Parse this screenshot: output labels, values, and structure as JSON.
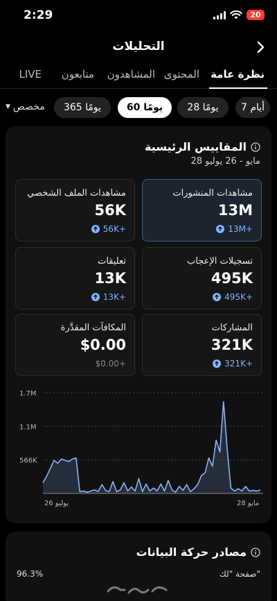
{
  "status_bar": {
    "time": "2:29",
    "battery": "20"
  },
  "header": {
    "title": "التحليلات"
  },
  "tabs": [
    {
      "label": "نظرة عامة",
      "active": true
    },
    {
      "label": "المحتوى"
    },
    {
      "label": "المشاهدون"
    },
    {
      "label": "متابعون"
    },
    {
      "label": "LIVE"
    }
  ],
  "ranges": [
    {
      "label": "7 أيام"
    },
    {
      "label": "28 يومًا"
    },
    {
      "label": "60 يومًا",
      "active": true
    },
    {
      "label": "365 يومًا"
    }
  ],
  "custom_range": "مخصص",
  "key_metrics": {
    "title": "المقاييس الرئيسية",
    "date_range": "28 مايو - 26 يوليو",
    "items": [
      {
        "label": "مشاهدات المنشورات",
        "value": "13M",
        "delta": "13M+",
        "selected": true
      },
      {
        "label": "مشاهدات الملف الشخصي",
        "value": "56K",
        "delta": "56K+"
      },
      {
        "label": "تسجيلات الإعجاب",
        "value": "495K",
        "delta": "495K+"
      },
      {
        "label": "تعليقات",
        "value": "13K",
        "delta": "13K+"
      },
      {
        "label": "المشاركات",
        "value": "321K",
        "delta": "321K+"
      },
      {
        "label": "المكافآت المقدَّرة",
        "value": "$0.00",
        "delta": "$0.00+"
      }
    ]
  },
  "chart_data": {
    "type": "area",
    "y_ticks": [
      "1.7M",
      "1.1M",
      "566K"
    ],
    "ylim": [
      0,
      1700000
    ],
    "x_tick_labels": [
      "يوليو 26",
      "مايو 28"
    ],
    "values": [
      180000,
      290000,
      420000,
      560000,
      510000,
      580000,
      560000,
      540000,
      580000,
      600000,
      30000,
      40000,
      20000,
      40000,
      60000,
      30000,
      150000,
      50000,
      30000,
      200000,
      30000,
      60000,
      180000,
      40000,
      110000,
      40000,
      250000,
      30000,
      160000,
      40000,
      90000,
      40000,
      160000,
      40000,
      220000,
      60000,
      20000,
      120000,
      50000,
      150000,
      30000,
      80000,
      150000,
      300000,
      350000,
      600000,
      460000,
      900000,
      700000,
      1550000,
      750000,
      90000,
      40000,
      80000,
      40000,
      120000,
      40000,
      50000,
      40000,
      60000
    ],
    "accent": "#8ab4f8"
  },
  "traffic_sources": {
    "title": "مصادر حركة البيانات",
    "first_source": "صفحة \"لك\"",
    "first_percent": "96.3%"
  }
}
